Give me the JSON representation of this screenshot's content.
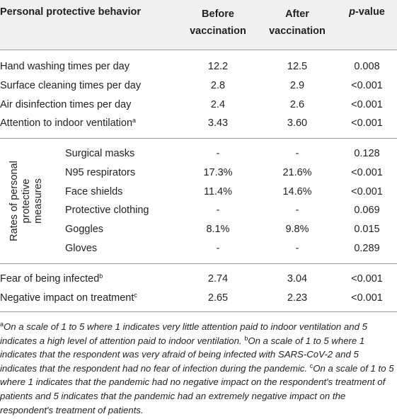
{
  "header": {
    "behavior": "Personal protective behavior",
    "before_l1": "Before",
    "before_l2": "vaccination",
    "after_l1": "After",
    "after_l2": "vaccination",
    "pvalue_p": "p",
    "pvalue_rest": "-value"
  },
  "rows_top": [
    {
      "label": "Hand washing times per day",
      "sup": "",
      "before": "12.2",
      "after": "12.5",
      "p": "0.008"
    },
    {
      "label": "Surface cleaning times per day",
      "sup": "",
      "before": "2.8",
      "after": "2.9",
      "p": "<0.001"
    },
    {
      "label": "Air disinfection times per day",
      "sup": "",
      "before": "2.4",
      "after": "2.6",
      "p": "<0.001"
    },
    {
      "label": "Attention to indoor ventilation",
      "sup": "a",
      "before": "3.43",
      "after": "3.60",
      "p": "<0.001"
    }
  ],
  "group_label": "Rates of personal protective measures",
  "rows_mid": [
    {
      "label": "Surgical masks",
      "before": "-",
      "after": "-",
      "p": "0.128"
    },
    {
      "label": "N95 respirators",
      "before": "17.3%",
      "after": "21.6%",
      "p": "<0.001"
    },
    {
      "label": "Face shields",
      "before": "11.4%",
      "after": "14.6%",
      "p": "<0.001"
    },
    {
      "label": "Protective clothing",
      "before": "-",
      "after": "-",
      "p": "0.069"
    },
    {
      "label": "Goggles",
      "before": "8.1%",
      "after": "9.8%",
      "p": "0.015"
    },
    {
      "label": "Gloves",
      "before": "-",
      "after": "-",
      "p": "0.289"
    }
  ],
  "rows_bot": [
    {
      "label": "Fear of being infected",
      "sup": "b",
      "before": "2.74",
      "after": "3.04",
      "p": "<0.001"
    },
    {
      "label": "Negative impact on treatment",
      "sup": "c",
      "before": "2.65",
      "after": "2.23",
      "p": "<0.001"
    }
  ],
  "footnote": {
    "a_mark": "a",
    "a_text": "On a scale of 1 to 5 where 1 indicates very little attention paid to indoor ventilation and 5 indicates a high level of attention paid to indoor ventilation.",
    "b_mark": "b",
    "b_text": "On a scale of 1 to 5 where 1 indicates that the respondent was very afraid of being infected with SARS-CoV-2 and 5 indicates that the respondent had no fear of infection during the pandemic.",
    "c_mark": "c",
    "c_text": "On a scale of 1 to 5 where 1 indicates that the pandemic had no negative impact on the respondent's treatment of patients and 5 indicates that the pandemic had an extremely negative impact on the respondent's treatment of patients."
  }
}
